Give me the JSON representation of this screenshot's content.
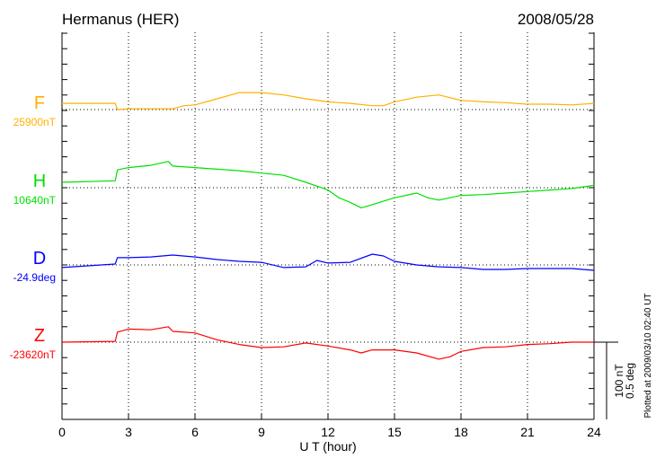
{
  "chart_data": {
    "type": "line",
    "title": "Hermanus (HER)",
    "date": "2008/05/28",
    "xlabel": "U T (hour)",
    "xlim": [
      0,
      24
    ],
    "xticks": [
      0,
      3,
      6,
      9,
      12,
      15,
      18,
      21,
      24
    ],
    "grid": "vertical dotted at x ticks, horizontal dotted at series baselines",
    "scale_bar": [
      "100 nT",
      "0.5 deg"
    ],
    "footnote": "Plotted at 2009/03/10 02:40 UT",
    "series": [
      {
        "name": "F",
        "baseline": 25900,
        "baseline_label": "25900nT",
        "unit": "nT",
        "color": "#ffb000",
        "x": [
          0,
          2.4,
          2.5,
          3,
          5,
          5.5,
          6,
          7,
          8,
          9,
          10,
          11,
          12,
          13,
          14,
          14.5,
          15,
          16,
          17,
          18,
          19,
          20,
          21,
          22,
          23,
          24
        ],
        "y": [
          25908,
          25908,
          25900,
          25901,
          25901,
          25905,
          25906,
          25914,
          25922,
          25922,
          25919,
          25914,
          25910,
          25908,
          25905,
          25905,
          25910,
          25916,
          25919,
          25912,
          25910,
          25909,
          25907,
          25907,
          25906,
          25908
        ]
      },
      {
        "name": "H",
        "baseline": 10640,
        "baseline_label": "10640nT",
        "unit": "nT",
        "color": "#00e000",
        "x": [
          0,
          2.4,
          2.5,
          3,
          4,
          4.8,
          5,
          6,
          7,
          8,
          9,
          10,
          11,
          12,
          12.5,
          13,
          13.5,
          14,
          15,
          16,
          16.5,
          17,
          18,
          19,
          20,
          21,
          22,
          23,
          24
        ],
        "y": [
          10647,
          10649,
          10663,
          10666,
          10669,
          10674,
          10668,
          10666,
          10664,
          10662,
          10659,
          10656,
          10647,
          10637,
          10627,
          10621,
          10614,
          10618,
          10627,
          10633,
          10627,
          10624,
          10630,
          10631,
          10633,
          10635,
          10637,
          10639,
          10643
        ]
      },
      {
        "name": "D",
        "baseline": -24.9,
        "baseline_label": "-24.9deg",
        "unit": "deg",
        "color": "#0000ff",
        "x": [
          0,
          2.4,
          2.5,
          3,
          4,
          5,
          6,
          7,
          8,
          9,
          10,
          11,
          11.5,
          12,
          13,
          14,
          14.5,
          15,
          16,
          17,
          18,
          19,
          20,
          21,
          22,
          23,
          24
        ],
        "y": [
          -24.917,
          -24.894,
          -24.853,
          -24.853,
          -24.848,
          -24.836,
          -24.848,
          -24.865,
          -24.877,
          -24.883,
          -24.917,
          -24.912,
          -24.871,
          -24.888,
          -24.883,
          -24.83,
          -24.842,
          -24.877,
          -24.9,
          -24.912,
          -24.917,
          -24.929,
          -24.929,
          -24.923,
          -24.923,
          -24.923,
          -24.935
        ]
      },
      {
        "name": "Z",
        "baseline": -23620,
        "baseline_label": "-23620nT",
        "unit": "nT",
        "color": "#ff0000",
        "x": [
          0,
          2.4,
          2.5,
          3,
          4,
          4.8,
          5,
          6,
          7,
          8,
          9,
          10,
          11,
          12,
          13,
          13.5,
          14,
          15,
          16,
          17,
          17.5,
          18,
          19,
          20,
          21,
          22,
          23,
          24
        ],
        "y": [
          -23620,
          -23619,
          -23607,
          -23603,
          -23604,
          -23600,
          -23606,
          -23608,
          -23617,
          -23623,
          -23627,
          -23626,
          -23621,
          -23625,
          -23630,
          -23634,
          -23630,
          -23630,
          -23634,
          -23642,
          -23639,
          -23632,
          -23627,
          -23626,
          -23623,
          -23622,
          -23620,
          -23620
        ]
      }
    ]
  }
}
